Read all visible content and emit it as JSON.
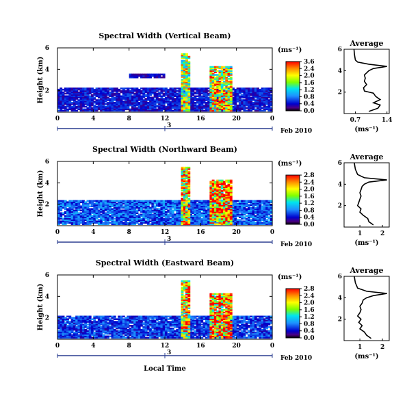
{
  "chart_data": [
    {
      "type": "heatmap",
      "title": "Spectral Width (Vertical Beam)",
      "ylabel": "Height (km)",
      "xticks": [
        "0",
        "4",
        "8",
        "12",
        "16",
        "20",
        "0"
      ],
      "yticks": [
        "2",
        "4",
        "6"
      ],
      "xlim": [
        0,
        24
      ],
      "ylim": [
        0,
        6
      ],
      "date_axis": {
        "mark": "3",
        "label": "Feb 2010"
      },
      "colorbar": {
        "unit": "(ms⁻¹)",
        "ticks": [
          "3.6",
          "2.4",
          "2.0",
          "1.6",
          "1.2",
          "0.8",
          "0.4",
          "0.0"
        ],
        "range": [
          0,
          3.6
        ]
      },
      "cloud_layers": [
        {
          "name": "boundary layer",
          "x": [
            0,
            24
          ],
          "y": [
            0.1,
            2.3
          ],
          "value": 0.6
        },
        {
          "name": "convective cell",
          "x": [
            13.8,
            14.8
          ],
          "y": [
            0.1,
            5.5
          ],
          "value": 2.4
        },
        {
          "name": "convective core",
          "x": [
            17.0,
            19.5
          ],
          "y": [
            0.1,
            4.3
          ],
          "value": 2.7
        },
        {
          "name": "upper layer",
          "x": [
            8,
            12
          ],
          "y": [
            3.2,
            3.6
          ],
          "value": 0.5
        }
      ],
      "average_profile": {
        "title": "Average",
        "xlabel": "(ms⁻¹)",
        "xticks": [
          "0.7",
          "1.4"
        ],
        "yticks": [
          "2",
          "4",
          "6"
        ],
        "xlim": [
          0.45,
          1.45
        ],
        "ylim": [
          0,
          6
        ],
        "x": [
          1.0,
          1.2,
          1.25,
          1.1,
          1.25,
          1.15,
          1.1,
          0.9,
          0.88,
          0.95,
          0.9,
          0.92,
          0.9,
          0.95,
          1.0,
          1.1,
          1.4,
          1.0,
          0.75,
          0.7,
          0.68,
          0.67
        ],
        "y": [
          0.2,
          0.5,
          0.8,
          1.0,
          1.3,
          1.6,
          1.9,
          2.1,
          2.4,
          2.7,
          3.0,
          3.3,
          3.6,
          3.8,
          4.0,
          4.2,
          4.4,
          4.6,
          4.8,
          5.0,
          5.5,
          6.0
        ]
      }
    },
    {
      "type": "heatmap",
      "title": "Spectral Width (Northward Beam)",
      "ylabel": "Height (km)",
      "xticks": [
        "0",
        "4",
        "8",
        "12",
        "16",
        "20",
        "0"
      ],
      "yticks": [
        "2",
        "4",
        "6"
      ],
      "xlim": [
        0,
        24
      ],
      "ylim": [
        0,
        6
      ],
      "date_axis": {
        "mark": "3",
        "label": "Feb 2010"
      },
      "colorbar": {
        "unit": "(ms⁻¹)",
        "ticks": [
          "2.8",
          "2.4",
          "2.0",
          "1.6",
          "1.2",
          "0.8",
          "0.4",
          "0.0"
        ],
        "range": [
          0,
          2.8
        ]
      },
      "cloud_layers": [
        {
          "name": "boundary layer",
          "x": [
            0,
            24
          ],
          "y": [
            0.1,
            2.4
          ],
          "value": 0.7
        },
        {
          "name": "convective cell",
          "x": [
            13.8,
            14.8
          ],
          "y": [
            0.1,
            5.5
          ],
          "value": 2.2
        },
        {
          "name": "convective core",
          "x": [
            17.0,
            19.5
          ],
          "y": [
            0.1,
            4.3
          ],
          "value": 2.5
        }
      ],
      "average_profile": {
        "title": "Average",
        "xlabel": "(ms⁻¹)",
        "xticks": [
          "1",
          "2"
        ],
        "yticks": [
          "2",
          "4",
          "6"
        ],
        "xlim": [
          0.3,
          2.3
        ],
        "ylim": [
          0,
          6
        ],
        "x": [
          1.6,
          1.4,
          1.35,
          1.15,
          1.0,
          1.05,
          0.9,
          0.95,
          1.0,
          1.05,
          1.0,
          1.05,
          1.1,
          1.2,
          1.4,
          2.2,
          1.2,
          0.9,
          0.8,
          0.75
        ],
        "y": [
          0.2,
          0.5,
          0.8,
          1.1,
          1.4,
          1.7,
          2.0,
          2.3,
          2.6,
          2.9,
          3.2,
          3.5,
          3.8,
          4.0,
          4.2,
          4.4,
          4.6,
          4.9,
          5.4,
          6.0
        ]
      }
    },
    {
      "type": "heatmap",
      "title": "Spectral Width (Eastward Beam)",
      "ylabel": "Height (km)",
      "xticks": [
        "0",
        "4",
        "8",
        "12",
        "16",
        "20",
        "0"
      ],
      "yticks": [
        "2",
        "4",
        "6"
      ],
      "xlim": [
        0,
        24
      ],
      "ylim": [
        0,
        6
      ],
      "date_axis": {
        "mark": "3",
        "label": "Feb 2010"
      },
      "xlabel": "Local Time",
      "colorbar": {
        "unit": "(ms⁻¹)",
        "ticks": [
          "2.8",
          "2.4",
          "2.0",
          "1.6",
          "1.2",
          "0.8",
          "0.4",
          "0.0"
        ],
        "range": [
          0,
          2.8
        ]
      },
      "cloud_layers": [
        {
          "name": "boundary layer",
          "x": [
            0,
            24
          ],
          "y": [
            0.1,
            2.2
          ],
          "value": 0.6
        },
        {
          "name": "convective cell",
          "x": [
            13.8,
            14.8
          ],
          "y": [
            0.1,
            5.5
          ],
          "value": 2.2
        },
        {
          "name": "convective core",
          "x": [
            17.0,
            19.5
          ],
          "y": [
            0.1,
            4.3
          ],
          "value": 2.5
        }
      ],
      "average_profile": {
        "title": "Average",
        "xlabel": "(ms⁻¹)",
        "xticks": [
          "1",
          "2"
        ],
        "yticks": [
          "2",
          "4",
          "6"
        ],
        "xlim": [
          0.3,
          2.3
        ],
        "ylim": [
          0,
          6
        ],
        "x": [
          1.5,
          1.3,
          1.2,
          1.0,
          1.1,
          0.95,
          1.05,
          0.9,
          1.0,
          1.05,
          1.0,
          1.1,
          1.15,
          1.3,
          1.6,
          2.2,
          1.3,
          0.9,
          0.8,
          0.75
        ],
        "y": [
          0.2,
          0.5,
          0.8,
          1.1,
          1.4,
          1.7,
          2.0,
          2.3,
          2.6,
          2.9,
          3.2,
          3.5,
          3.8,
          4.0,
          4.2,
          4.4,
          4.6,
          4.9,
          5.4,
          6.0
        ]
      }
    }
  ]
}
